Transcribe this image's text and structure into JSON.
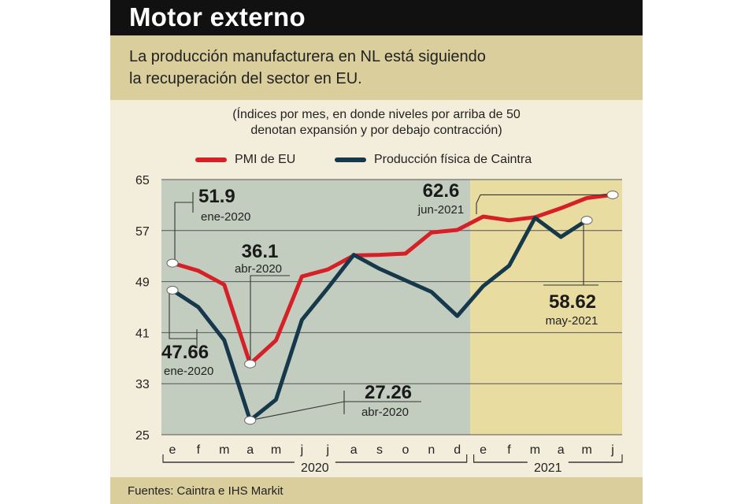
{
  "header": {
    "title": "Motor externo",
    "subtitle_line1": "La producción manufacturera en NL está siguiendo",
    "subtitle_line2": "la recuperación del sector en EU."
  },
  "note": {
    "line1": "(Índices por mes, en donde niveles por arriba de 50",
    "line2": "denotan expansión y por debajo contracción)"
  },
  "legend": {
    "pmi": "PMI de EU",
    "caintra": "Producción física de Caintra"
  },
  "footer": {
    "source": "Fuentes: Caintra e IHS Markit"
  },
  "colors": {
    "pmi": "#d62027",
    "caintra": "#15384a",
    "band2020": "#c3cdbf",
    "band2021": "#e9dca0"
  },
  "chart_data": {
    "type": "line",
    "categories": [
      "e",
      "f",
      "m",
      "a",
      "m",
      "j",
      "j",
      "a",
      "s",
      "o",
      "n",
      "d",
      "e",
      "f",
      "m",
      "a",
      "m",
      "j"
    ],
    "years": [
      {
        "label": "2020",
        "from": 0,
        "to": 11
      },
      {
        "label": "2021",
        "from": 12,
        "to": 17
      }
    ],
    "ylim": [
      25,
      65
    ],
    "yticks": [
      65,
      57,
      49,
      41,
      33,
      25
    ],
    "grid": true,
    "legend_position": "top",
    "series": [
      {
        "name": "PMI de EU",
        "key": "pmi",
        "values": [
          51.9,
          50.7,
          48.5,
          36.1,
          39.8,
          49.8,
          50.9,
          53.1,
          53.2,
          53.4,
          56.7,
          57.1,
          59.2,
          58.6,
          59.1,
          60.5,
          62.1,
          62.6
        ]
      },
      {
        "name": "Producción física de Caintra",
        "key": "caintra",
        "values": [
          47.66,
          45.0,
          39.8,
          27.26,
          30.5,
          43.0,
          48.0,
          53.2,
          51.0,
          49.2,
          47.4,
          43.6,
          48.3,
          51.5,
          59.0,
          56.0,
          58.62,
          null
        ]
      }
    ],
    "annotations": [
      {
        "series": "pmi",
        "index": 0,
        "value": "51.9",
        "date": "ene-2020"
      },
      {
        "series": "pmi",
        "index": 3,
        "value": "36.1",
        "date": "abr-2020"
      },
      {
        "series": "pmi",
        "index": 17,
        "value": "62.6",
        "date": "jun-2021"
      },
      {
        "series": "caintra",
        "index": 0,
        "value": "47.66",
        "date": "ene-2020"
      },
      {
        "series": "caintra",
        "index": 3,
        "value": "27.26",
        "date": "abr-2020"
      },
      {
        "series": "caintra",
        "index": 16,
        "value": "58.62",
        "date": "may-2021"
      }
    ]
  }
}
